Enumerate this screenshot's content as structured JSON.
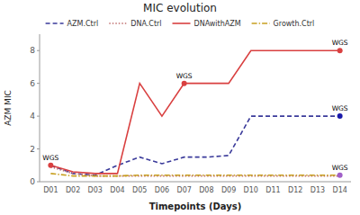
{
  "chart_data": {
    "type": "line",
    "title": "MIC evolution",
    "x_label": "Timepoints (Days)",
    "y_label": "AZM MIC",
    "categories": [
      "D01",
      "D02",
      "D03",
      "D04",
      "D05",
      "D06",
      "D07",
      "D08",
      "D09",
      "D10",
      "D11",
      "D12",
      "D13",
      "D14"
    ],
    "series": [
      {
        "name": "AZM.Ctrl",
        "color": "#3a3a9a",
        "line_style": "dashed",
        "values": [
          1.0,
          0.5,
          0.4,
          1.0,
          1.5,
          1.1,
          1.5,
          1.5,
          1.6,
          4.0,
          4.0,
          4.0,
          4.0,
          4.0
        ]
      },
      {
        "name": "DNA.Ctrl",
        "color": "#c07070",
        "line_style": "dotted",
        "values": [
          0.9,
          0.5,
          0.35,
          0.35,
          0.35,
          0.35,
          0.35,
          0.35,
          0.35,
          0.35,
          0.35,
          0.35,
          0.35,
          0.35
        ]
      },
      {
        "name": "DNAwithAZM",
        "color": "#d94040",
        "line_style": "solid",
        "values": [
          1.0,
          0.6,
          0.5,
          0.5,
          6.0,
          4.0,
          6.0,
          6.0,
          6.0,
          8.0,
          8.0,
          8.0,
          8.0,
          8.0
        ]
      },
      {
        "name": "Growth.Ctrl",
        "color": "#c8a020",
        "line_style": "dashdot",
        "values": [
          0.5,
          0.35,
          0.35,
          0.35,
          0.4,
          0.4,
          0.4,
          0.4,
          0.4,
          0.4,
          0.4,
          0.4,
          0.4,
          0.4
        ]
      }
    ],
    "annotations": [
      {
        "text": "WGS",
        "x": "D01",
        "y": 1.0,
        "color": "#d94040"
      },
      {
        "text": "WGS",
        "x": "D07",
        "y": 6.0,
        "color": "#d94040"
      },
      {
        "text": "WGS",
        "x": "D14",
        "y": 8.0,
        "color": "#d94040"
      },
      {
        "text": "WGS",
        "x": "D14",
        "y": 4.0,
        "color": "#1a1aaa"
      },
      {
        "text": "WGS",
        "x": "D14",
        "y": 0.4,
        "color": "#a060c8"
      }
    ],
    "ylim": [
      0,
      9
    ],
    "yticks": [
      0,
      2,
      4,
      6,
      8
    ],
    "grid": false,
    "legend": "top"
  }
}
